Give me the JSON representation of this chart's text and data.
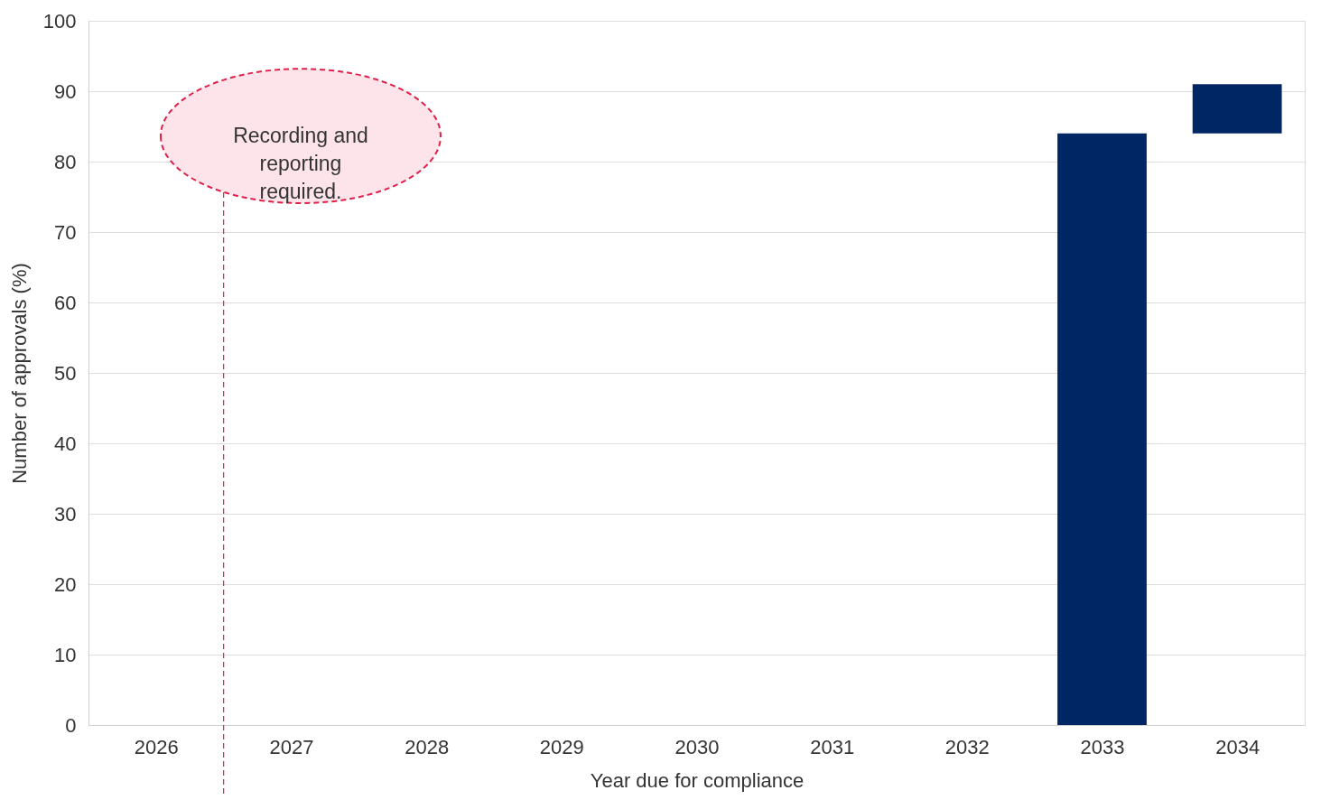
{
  "chart_data": {
    "type": "bar",
    "xlabel": "Year due for compliance",
    "ylabel": "Number of approvals (%)",
    "x": [
      2026,
      2027,
      2028,
      2029,
      2030,
      2031,
      2032,
      2033,
      2034
    ],
    "values": [
      0,
      0,
      0,
      0,
      0,
      0,
      0,
      84,
      7
    ],
    "base": [
      null,
      null,
      null,
      null,
      null,
      null,
      null,
      null,
      84
    ],
    "color": "#002663",
    "xlim": [
      2025.5,
      2034.5
    ],
    "xticks": [
      2026,
      2027,
      2028,
      2029,
      2030,
      2031,
      2032,
      2033,
      2034
    ],
    "ylim": [
      0,
      100
    ],
    "yticks": [
      0,
      10,
      20,
      30,
      40,
      50,
      60,
      70,
      80,
      90,
      100
    ],
    "grid": "y",
    "ref_lines": [
      {
        "axis": "x",
        "value": 2026.5,
        "label": "Recording and reporting required.",
        "color": "#e0204a",
        "line_style": "dashed"
      }
    ]
  }
}
